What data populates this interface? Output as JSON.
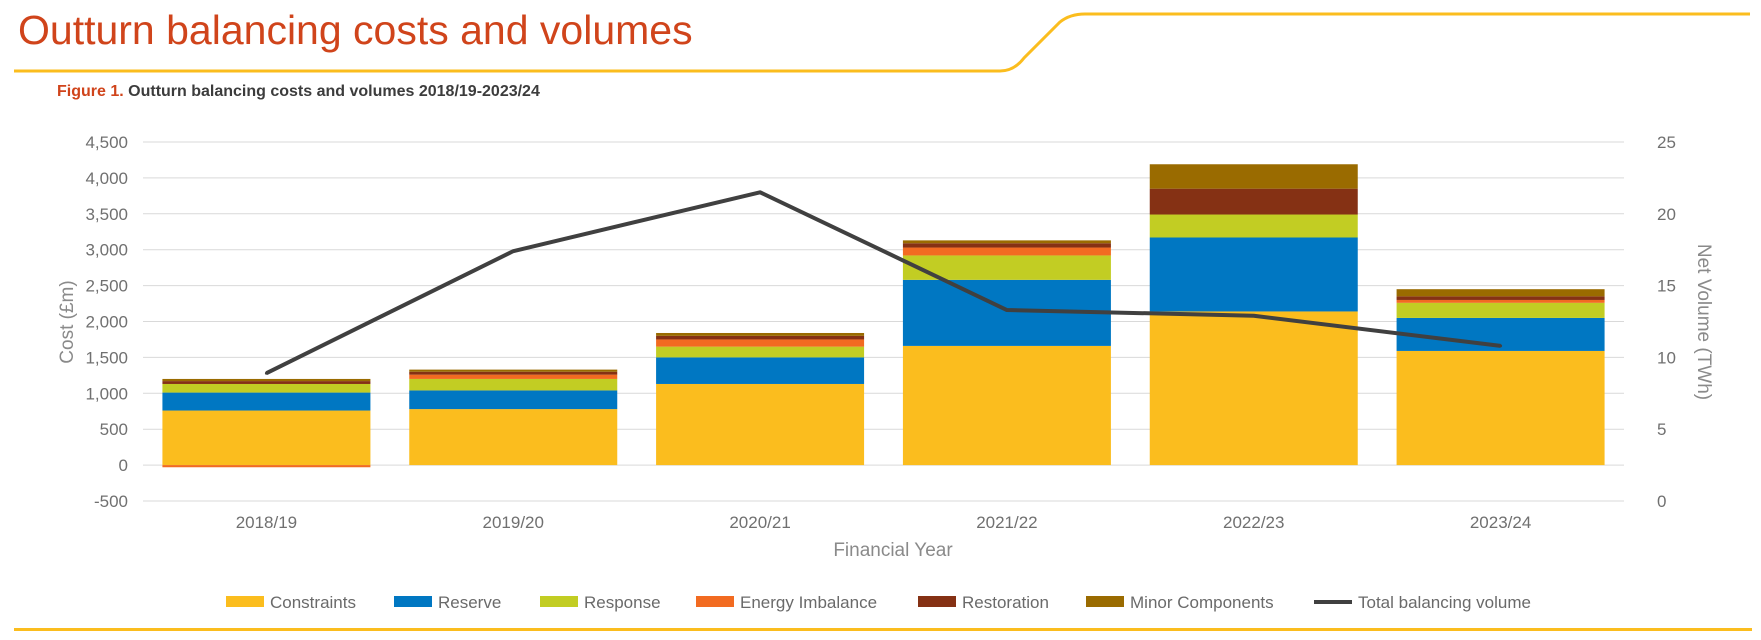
{
  "page": {
    "title": "Outturn balancing costs and volumes"
  },
  "figure": {
    "label": "Figure 1.",
    "caption": "Outturn balancing costs and volumes 2018/19-2023/24"
  },
  "colors": {
    "accent": "#d0441b",
    "rule": "#fbbd1e",
    "grid": "#d9d9d9"
  },
  "chart_data": {
    "type": "bar",
    "stacked": true,
    "categories": [
      "2018/19",
      "2019/20",
      "2020/21",
      "2021/22",
      "2022/23",
      "2023/24"
    ],
    "xlabel": "Financial Year",
    "ylabel": "Cost (£m)",
    "y2label": "Net Volume (TWh)",
    "ylim": [
      -500,
      4500
    ],
    "yticks": [
      -500,
      0,
      500,
      1000,
      1500,
      2000,
      2500,
      3000,
      3500,
      4000,
      4500
    ],
    "ytick_labels": [
      "-500",
      "0",
      "500",
      "1,000",
      "1,500",
      "2,000",
      "2,500",
      "3,000",
      "3,500",
      "4,000",
      "4,500"
    ],
    "y2lim": [
      0,
      25
    ],
    "y2ticks": [
      0,
      5,
      10,
      15,
      20,
      25
    ],
    "y2tick_labels": [
      "0",
      "5",
      "10",
      "15",
      "20",
      "25"
    ],
    "grid": true,
    "legend_position": "bottom",
    "series": [
      {
        "name": "Constraints",
        "color": "#fbbd1e",
        "values": [
          760,
          780,
          1130,
          1660,
          2140,
          1590
        ]
      },
      {
        "name": "Reserve",
        "color": "#0077c2",
        "values": [
          250,
          260,
          370,
          920,
          1030,
          460
        ]
      },
      {
        "name": "Response",
        "color": "#c2cd23",
        "values": [
          120,
          160,
          150,
          340,
          320,
          210
        ]
      },
      {
        "name": "Energy Imbalance",
        "color": "#f26b21",
        "values": [
          -30,
          60,
          100,
          110,
          0,
          40
        ]
      },
      {
        "name": "Restoration",
        "color": "#853114",
        "values": [
          40,
          40,
          50,
          60,
          360,
          50
        ]
      },
      {
        "name": "Minor Components",
        "color": "#9a6b00",
        "values": [
          30,
          30,
          40,
          40,
          340,
          100
        ]
      }
    ],
    "line_series": {
      "name": "Total balancing volume",
      "color": "#404040",
      "axis": "right",
      "values": [
        8.9,
        17.4,
        21.5,
        13.3,
        12.9,
        10.8
      ]
    }
  }
}
